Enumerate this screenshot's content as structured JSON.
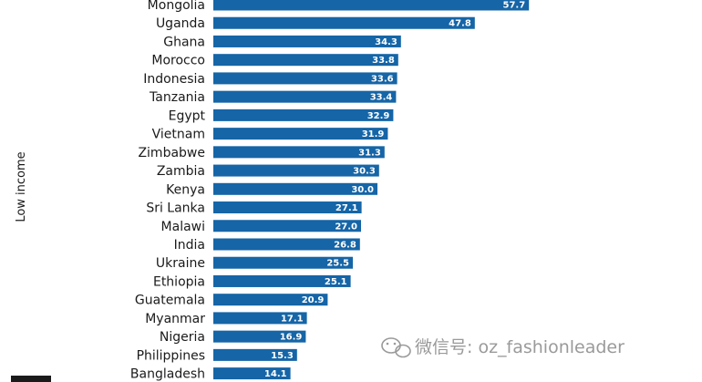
{
  "chart_data": {
    "type": "bar",
    "orientation": "horizontal",
    "group_label": "Low income",
    "categories": [
      "Mongolia",
      "Uganda",
      "Ghana",
      "Morocco",
      "Indonesia",
      "Tanzania",
      "Egypt",
      "Vietnam",
      "Zimbabwe",
      "Zambia",
      "Kenya",
      "Sri Lanka",
      "Malawi",
      "India",
      "Ukraine",
      "Ethiopia",
      "Guatemala",
      "Myanmar",
      "Nigeria",
      "Philippines",
      "Bangladesh"
    ],
    "values": [
      57.7,
      47.8,
      34.3,
      33.8,
      33.6,
      33.4,
      32.9,
      31.9,
      31.3,
      30.3,
      30.0,
      27.1,
      27.0,
      26.8,
      25.5,
      25.1,
      20.9,
      17.1,
      16.9,
      15.3,
      14.1
    ],
    "value_labels": [
      "57.7",
      "47.8",
      "34.3",
      "33.8",
      "33.6",
      "33.4",
      "32.9",
      "31.9",
      "31.3",
      "30.3",
      "30.0",
      "27.1",
      "27.0",
      "26.8",
      "25.5",
      "25.1",
      "20.9",
      "17.1",
      "16.9",
      "15.3",
      "14.1"
    ],
    "bar_color": "#1565a7",
    "xlim": [
      0,
      60
    ]
  },
  "watermark": {
    "text": "微信号: oz_fashionleader",
    "icon": "wechat-icon"
  }
}
